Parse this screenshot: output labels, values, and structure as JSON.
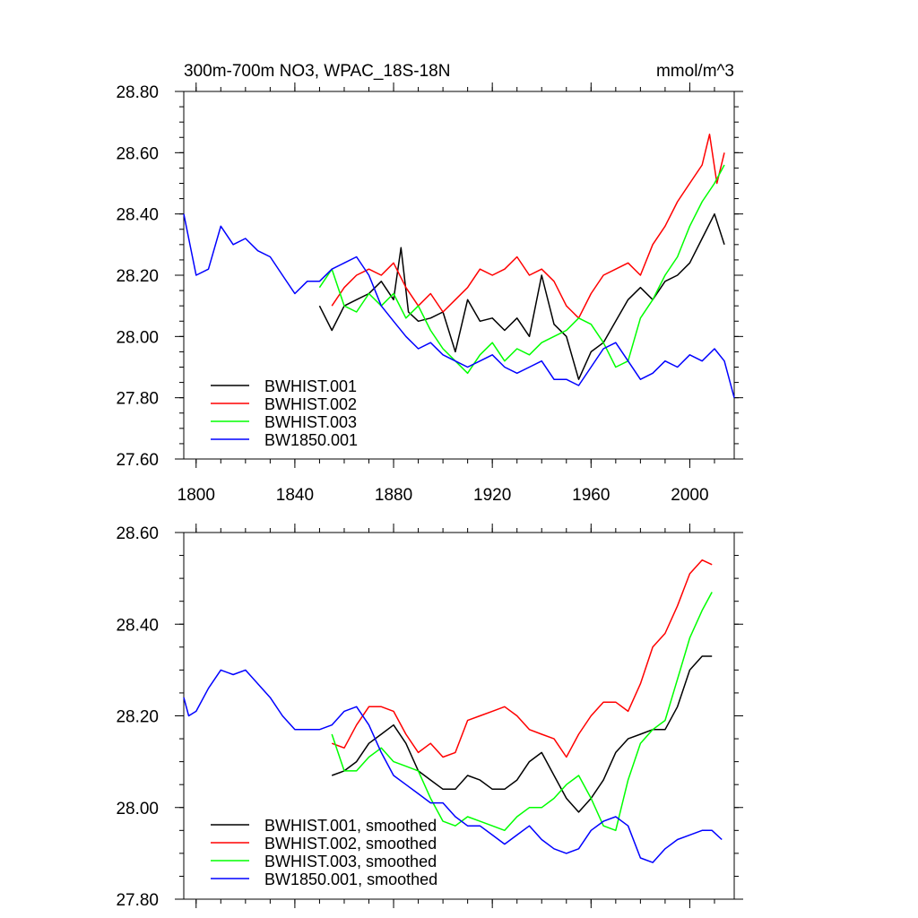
{
  "chart_data": [
    {
      "type": "line",
      "title": "300m-700m NO3, WPAC_18S-18N",
      "units": "mmol/m^3",
      "xlabel": "",
      "ylabel": "",
      "xlim": [
        1795,
        2018
      ],
      "ylim": [
        27.6,
        28.8
      ],
      "x_ticks": [
        1800,
        1840,
        1880,
        1920,
        1960,
        2000
      ],
      "y_ticks": [
        27.6,
        27.8,
        28.0,
        28.2,
        28.4,
        28.6,
        28.8
      ],
      "y_tick_labels": [
        "27.60",
        "27.80",
        "28.00",
        "28.20",
        "28.40",
        "28.60",
        "28.80"
      ],
      "legend_position": "bottom-left",
      "series": [
        {
          "name": "BWHIST.001",
          "color": "#000000",
          "x": [
            1850,
            1855,
            1860,
            1865,
            1870,
            1875,
            1880,
            1883,
            1886,
            1890,
            1895,
            1900,
            1905,
            1910,
            1915,
            1920,
            1925,
            1930,
            1935,
            1940,
            1945,
            1950,
            1955,
            1960,
            1965,
            1970,
            1975,
            1980,
            1985,
            1990,
            1995,
            2000,
            2005,
            2010,
            2014
          ],
          "values": [
            28.1,
            28.02,
            28.1,
            28.12,
            28.14,
            28.18,
            28.12,
            28.29,
            28.08,
            28.05,
            28.06,
            28.08,
            27.95,
            28.12,
            28.05,
            28.06,
            28.02,
            28.06,
            28.0,
            28.2,
            28.04,
            28.0,
            27.86,
            27.95,
            27.98,
            28.05,
            28.12,
            28.16,
            28.12,
            28.18,
            28.2,
            28.24,
            28.32,
            28.4,
            28.3
          ]
        },
        {
          "name": "BWHIST.002",
          "color": "#ff0000",
          "x": [
            1855,
            1860,
            1865,
            1870,
            1875,
            1880,
            1885,
            1890,
            1895,
            1900,
            1905,
            1910,
            1915,
            1920,
            1925,
            1930,
            1935,
            1940,
            1945,
            1950,
            1955,
            1960,
            1965,
            1970,
            1975,
            1980,
            1985,
            1990,
            1995,
            2000,
            2005,
            2008,
            2011,
            2014
          ],
          "values": [
            28.1,
            28.16,
            28.2,
            28.22,
            28.2,
            28.24,
            28.16,
            28.1,
            28.14,
            28.08,
            28.12,
            28.16,
            28.22,
            28.2,
            28.22,
            28.26,
            28.2,
            28.22,
            28.18,
            28.1,
            28.06,
            28.14,
            28.2,
            28.22,
            28.24,
            28.2,
            28.3,
            28.36,
            28.44,
            28.5,
            28.56,
            28.66,
            28.5,
            28.6
          ]
        },
        {
          "name": "BWHIST.003",
          "color": "#00ff00",
          "x": [
            1850,
            1855,
            1860,
            1865,
            1870,
            1875,
            1880,
            1885,
            1890,
            1895,
            1900,
            1905,
            1910,
            1915,
            1920,
            1925,
            1930,
            1935,
            1940,
            1945,
            1950,
            1955,
            1960,
            1965,
            1970,
            1975,
            1980,
            1985,
            1990,
            1995,
            2000,
            2005,
            2010,
            2014
          ],
          "values": [
            28.16,
            28.22,
            28.1,
            28.08,
            28.14,
            28.1,
            28.14,
            28.06,
            28.1,
            28.02,
            27.96,
            27.92,
            27.88,
            27.94,
            27.98,
            27.92,
            27.96,
            27.94,
            27.98,
            28.0,
            28.02,
            28.06,
            28.04,
            27.98,
            27.9,
            27.92,
            28.06,
            28.12,
            28.2,
            28.26,
            28.36,
            28.44,
            28.5,
            28.56
          ]
        },
        {
          "name": "BW1850.001",
          "color": "#0000ff",
          "x": [
            1795,
            1800,
            1805,
            1810,
            1815,
            1820,
            1825,
            1830,
            1835,
            1840,
            1845,
            1850,
            1855,
            1860,
            1865,
            1870,
            1875,
            1880,
            1885,
            1890,
            1895,
            1900,
            1905,
            1910,
            1915,
            1920,
            1925,
            1930,
            1935,
            1940,
            1945,
            1950,
            1955,
            1960,
            1965,
            1970,
            1975,
            1980,
            1985,
            1990,
            1995,
            2000,
            2005,
            2010,
            2014,
            2018
          ],
          "values": [
            28.4,
            28.2,
            28.22,
            28.36,
            28.3,
            28.32,
            28.28,
            28.26,
            28.2,
            28.14,
            28.18,
            28.18,
            28.22,
            28.24,
            28.26,
            28.2,
            28.1,
            28.05,
            28.0,
            27.96,
            27.98,
            27.94,
            27.92,
            27.9,
            27.92,
            27.94,
            27.9,
            27.88,
            27.9,
            27.92,
            27.86,
            27.86,
            27.84,
            27.9,
            27.96,
            27.98,
            27.92,
            27.86,
            27.88,
            27.92,
            27.9,
            27.94,
            27.92,
            27.96,
            27.92,
            27.8
          ]
        }
      ]
    },
    {
      "type": "line",
      "title": "",
      "xlabel": "",
      "ylabel": "",
      "xlim": [
        1795,
        2018
      ],
      "ylim": [
        27.8,
        28.6
      ],
      "x_ticks": [
        1800,
        1840,
        1880,
        1920,
        1960,
        2000
      ],
      "y_ticks": [
        27.8,
        28.0,
        28.2,
        28.4,
        28.6
      ],
      "y_tick_labels": [
        "27.80",
        "28.00",
        "28.20",
        "28.40",
        "28.60"
      ],
      "legend_position": "bottom-left",
      "series": [
        {
          "name": "BWHIST.001, smoothed",
          "color": "#000000",
          "x": [
            1855,
            1860,
            1865,
            1870,
            1875,
            1880,
            1885,
            1890,
            1895,
            1900,
            1905,
            1910,
            1915,
            1920,
            1925,
            1930,
            1935,
            1940,
            1945,
            1950,
            1955,
            1960,
            1965,
            1970,
            1975,
            1980,
            1985,
            1990,
            1995,
            2000,
            2005,
            2009
          ],
          "values": [
            28.07,
            28.08,
            28.1,
            28.14,
            28.16,
            28.18,
            28.14,
            28.08,
            28.06,
            28.04,
            28.04,
            28.07,
            28.06,
            28.04,
            28.04,
            28.06,
            28.1,
            28.12,
            28.07,
            28.02,
            27.99,
            28.02,
            28.06,
            28.12,
            28.15,
            28.16,
            28.17,
            28.17,
            28.22,
            28.3,
            28.33,
            28.33
          ]
        },
        {
          "name": "BWHIST.002, smoothed",
          "color": "#ff0000",
          "x": [
            1855,
            1860,
            1865,
            1870,
            1875,
            1880,
            1885,
            1890,
            1895,
            1900,
            1905,
            1910,
            1915,
            1920,
            1925,
            1930,
            1935,
            1940,
            1945,
            1950,
            1955,
            1960,
            1965,
            1970,
            1975,
            1980,
            1985,
            1990,
            1995,
            2000,
            2005,
            2009
          ],
          "values": [
            28.14,
            28.13,
            28.18,
            28.22,
            28.22,
            28.21,
            28.16,
            28.12,
            28.14,
            28.11,
            28.12,
            28.19,
            28.2,
            28.21,
            28.22,
            28.2,
            28.17,
            28.16,
            28.15,
            28.11,
            28.16,
            28.2,
            28.23,
            28.23,
            28.21,
            28.27,
            28.35,
            28.38,
            28.44,
            28.51,
            28.54,
            28.53
          ]
        },
        {
          "name": "BWHIST.003, smoothed",
          "color": "#00ff00",
          "x": [
            1855,
            1860,
            1865,
            1870,
            1875,
            1880,
            1885,
            1890,
            1895,
            1900,
            1905,
            1910,
            1915,
            1920,
            1925,
            1930,
            1935,
            1940,
            1945,
            1950,
            1955,
            1960,
            1965,
            1970,
            1975,
            1980,
            1985,
            1990,
            1995,
            2000,
            2005,
            2009
          ],
          "values": [
            28.16,
            28.08,
            28.08,
            28.11,
            28.13,
            28.1,
            28.09,
            28.08,
            28.02,
            27.97,
            27.96,
            27.98,
            27.97,
            27.96,
            27.95,
            27.98,
            28.0,
            28.0,
            28.02,
            28.05,
            28.07,
            28.02,
            27.96,
            27.95,
            28.06,
            28.14,
            28.17,
            28.19,
            28.28,
            28.37,
            28.43,
            28.47
          ]
        },
        {
          "name": "BW1850.001, smoothed",
          "color": "#0000ff",
          "x": [
            1795,
            1797,
            1800,
            1805,
            1810,
            1815,
            1820,
            1825,
            1830,
            1835,
            1840,
            1845,
            1850,
            1855,
            1860,
            1865,
            1870,
            1875,
            1880,
            1885,
            1890,
            1895,
            1900,
            1905,
            1910,
            1915,
            1920,
            1925,
            1930,
            1935,
            1940,
            1945,
            1950,
            1955,
            1960,
            1965,
            1970,
            1975,
            1980,
            1985,
            1990,
            1995,
            2000,
            2005,
            2009,
            2013
          ],
          "values": [
            28.24,
            28.2,
            28.21,
            28.26,
            28.3,
            28.29,
            28.3,
            28.27,
            28.24,
            28.2,
            28.17,
            28.17,
            28.17,
            28.18,
            28.21,
            28.22,
            28.18,
            28.12,
            28.07,
            28.05,
            28.03,
            28.01,
            28.01,
            27.98,
            27.96,
            27.96,
            27.94,
            27.92,
            27.94,
            27.96,
            27.93,
            27.91,
            27.9,
            27.91,
            27.95,
            27.97,
            27.98,
            27.96,
            27.89,
            27.88,
            27.91,
            27.93,
            27.94,
            27.95,
            27.95,
            27.93
          ]
        }
      ]
    }
  ]
}
